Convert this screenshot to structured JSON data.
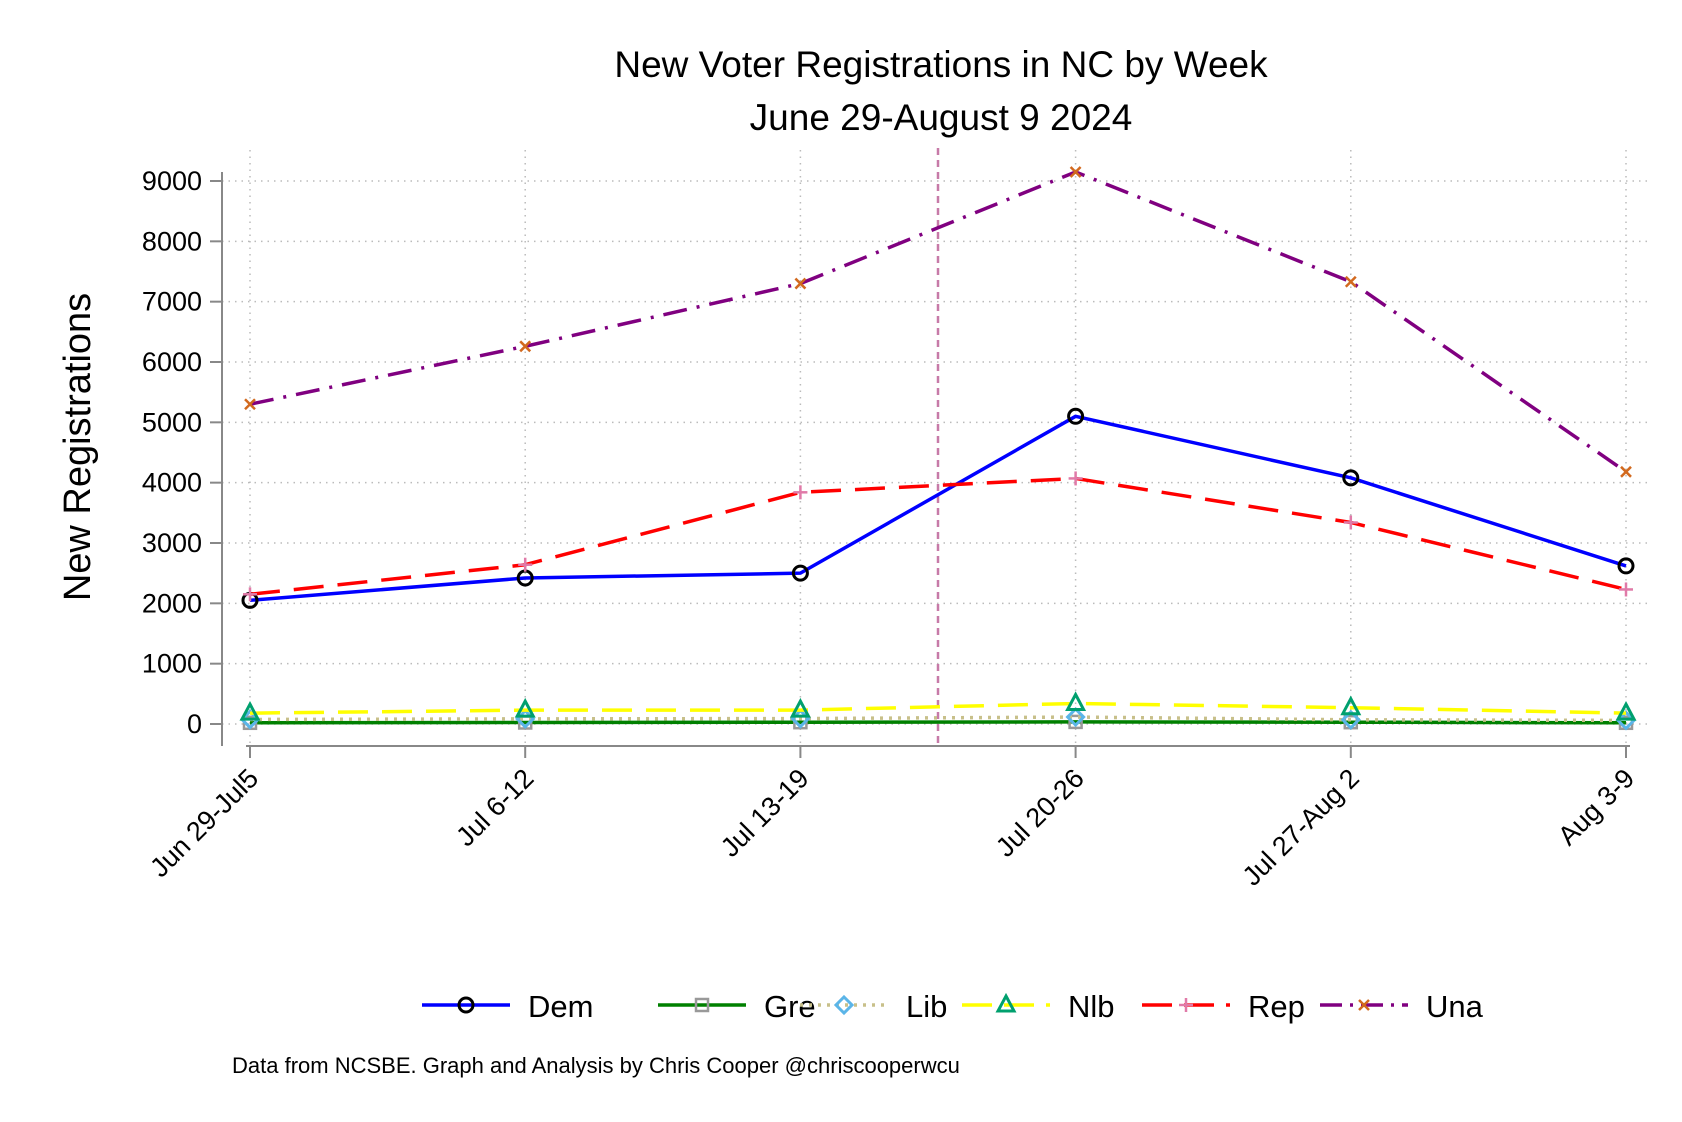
{
  "chart_data": {
    "type": "line",
    "title": "New Voter Registrations in NC by Week",
    "subtitle": "June 29-August 9 2024",
    "xlabel": "",
    "ylabel": "New Registrations",
    "categories": [
      "Jun 29-Jul5",
      "Jul 6-12",
      "Jul 13-19",
      "Jul 20-26",
      "Jul 27-Aug 2",
      "Aug 3-9"
    ],
    "ylim": [
      0,
      9000
    ],
    "yticks": [
      "0",
      "1000",
      "2000",
      "3000",
      "4000",
      "5000",
      "6000",
      "7000",
      "8000",
      "9000"
    ],
    "grid": true,
    "reference_line_x": 2.5,
    "legend_position": "bottom",
    "series": [
      {
        "name": "Dem",
        "values": [
          2050,
          2420,
          2500,
          5100,
          4080,
          2620
        ],
        "color": "#0000ff",
        "marker": "circle",
        "marker_color": "#000000",
        "dash": "solid"
      },
      {
        "name": "Gre",
        "values": [
          20,
          25,
          30,
          35,
          30,
          20
        ],
        "color": "#008000",
        "marker": "square",
        "marker_color": "#999999",
        "dash": "solid"
      },
      {
        "name": "Lib",
        "values": [
          75,
          85,
          90,
          115,
          70,
          60
        ],
        "color": "#c8c08a",
        "marker": "diamond",
        "marker_color": "#5bb5e8",
        "dash": "dot"
      },
      {
        "name": "Nlb",
        "values": [
          180,
          230,
          230,
          340,
          270,
          180
        ],
        "color": "#ffff00",
        "marker": "triangle",
        "marker_color": "#00a06e",
        "dash": "longdash"
      },
      {
        "name": "Rep",
        "values": [
          2150,
          2640,
          3840,
          4070,
          3340,
          2230
        ],
        "color": "#ff0000",
        "marker": "plus",
        "marker_color": "#e07aa8",
        "dash": "longdash"
      },
      {
        "name": "Una",
        "values": [
          5300,
          6260,
          7300,
          9150,
          7330,
          4180
        ],
        "color": "#800080",
        "marker": "x",
        "marker_color": "#d2691e",
        "dash": "dashdot"
      }
    ],
    "footnote": "Data from NCSBE. Graph and Analysis by Chris Cooper @chriscooperwcu"
  }
}
